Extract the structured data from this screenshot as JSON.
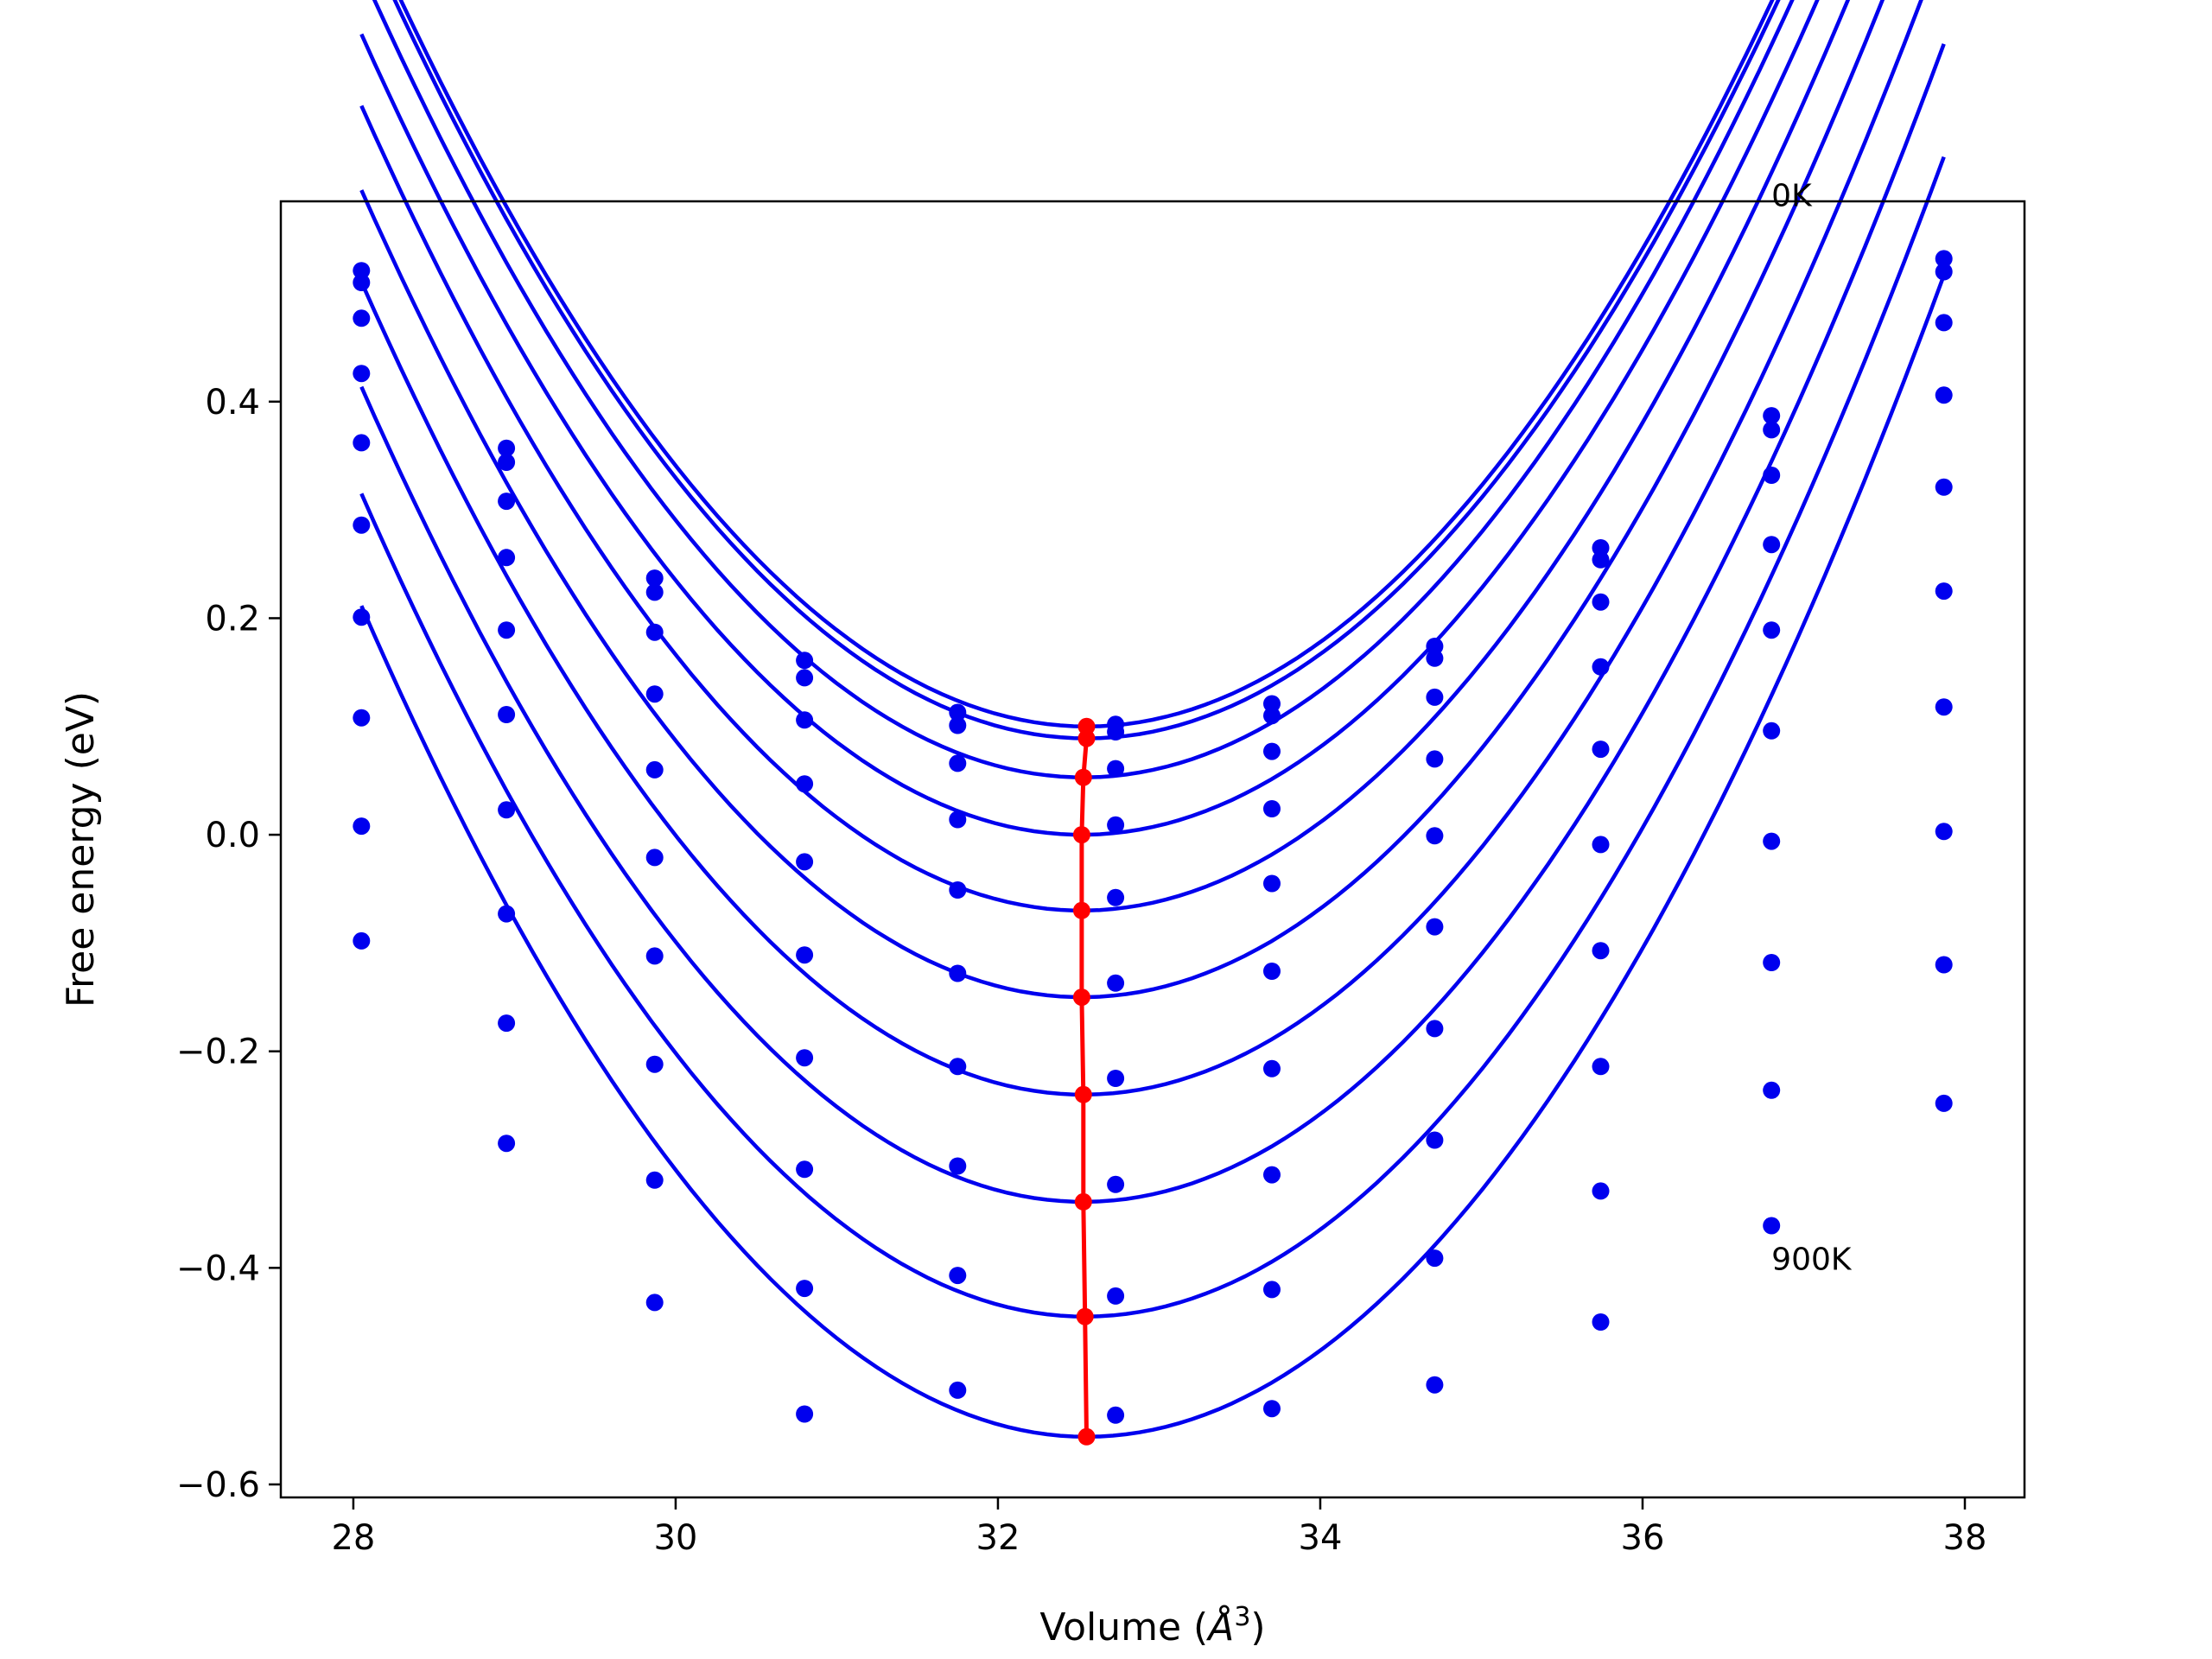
{
  "chart_data": {
    "type": "line",
    "xlabel": "Volume (",
    "xlabel_unit": "Å",
    "xlabel_exp": "3",
    "xlabel_close": ")",
    "ylabel": "Free energy (eV)",
    "xlim": [
      27.55,
      38.37
    ],
    "ylim": [
      -0.612,
      0.585
    ],
    "xticks": [
      28,
      30,
      32,
      34,
      36,
      38
    ],
    "xtick_labels": [
      "28",
      "30",
      "32",
      "34",
      "36",
      "38"
    ],
    "yticks": [
      -0.6,
      -0.4,
      -0.2,
      0.0,
      0.2,
      0.4
    ],
    "ytick_labels": [
      "−0.6",
      "−0.4",
      "−0.2",
      "0.0",
      "0.2",
      "0.4"
    ],
    "grid": false,
    "legend": "none",
    "colors": {
      "curves": "#0000ee",
      "minima": "#ff0000"
    },
    "annotations": [
      {
        "text": "0K",
        "x": 36.8,
        "y": 0.59
      },
      {
        "text": "900K",
        "x": 36.8,
        "y": -0.392
      }
    ],
    "volumes": [
      28.05,
      28.95,
      29.87,
      30.8,
      31.75,
      32.73,
      33.7,
      34.71,
      35.74,
      36.8,
      37.87
    ],
    "series": [
      {
        "points": [
          0.521,
          0.357,
          0.237,
          0.161,
          0.113,
          0.102,
          0.121,
          0.174,
          0.265,
          0.387,
          0.532
        ],
        "fit": {
          "a": 0.03705,
          "xmin": 32.55,
          "fmin": 0.1
        }
      },
      {
        "points": [
          0.51,
          0.344,
          0.224,
          0.145,
          0.101,
          0.095,
          0.11,
          0.163,
          0.254,
          0.374,
          0.52
        ],
        "fit": {
          "a": 0.037,
          "xmin": 32.55,
          "fmin": 0.089
        }
      },
      {
        "points": [
          0.477,
          0.308,
          0.187,
          0.106,
          0.066,
          0.061,
          0.077,
          0.127,
          0.215,
          0.332,
          0.473
        ],
        "fit": {
          "a": 0.0371,
          "xmin": 32.53,
          "fmin": 0.053
        }
      },
      {
        "points": [
          0.426,
          0.256,
          0.13,
          0.047,
          0.014,
          0.009,
          0.024,
          0.07,
          0.155,
          0.268,
          0.406
        ],
        "fit": {
          "a": 0.037,
          "xmin": 32.52,
          "fmin": 0.0
        }
      },
      {
        "points": [
          0.362,
          0.189,
          0.06,
          -0.025,
          -0.051,
          -0.058,
          -0.045,
          -0.001,
          0.079,
          0.189,
          0.321
        ],
        "fit": {
          "a": 0.0372,
          "xmin": 32.52,
          "fmin": -0.07
        }
      },
      {
        "points": [
          0.286,
          0.111,
          -0.021,
          -0.111,
          -0.128,
          -0.137,
          -0.126,
          -0.085,
          -0.009,
          0.096,
          0.225
        ],
        "fit": {
          "a": 0.0373,
          "xmin": 32.52,
          "fmin": -0.15
        }
      },
      {
        "points": [
          0.201,
          0.023,
          -0.112,
          -0.206,
          -0.214,
          -0.225,
          -0.216,
          -0.179,
          -0.107,
          -0.006,
          0.118
        ],
        "fit": {
          "a": 0.0374,
          "xmin": 32.53,
          "fmin": -0.24
        }
      },
      {
        "points": [
          0.108,
          -0.073,
          -0.212,
          -0.309,
          -0.306,
          -0.323,
          -0.314,
          -0.282,
          -0.214,
          -0.118,
          0.003
        ],
        "fit": {
          "a": 0.0375,
          "xmin": 32.53,
          "fmin": -0.339
        }
      },
      {
        "points": [
          0.008,
          -0.174,
          -0.319,
          -0.419,
          -0.407,
          -0.426,
          -0.42,
          -0.391,
          -0.329,
          -0.236,
          -0.12
        ],
        "fit": {
          "a": 0.0377,
          "xmin": 32.54,
          "fmin": -0.445
        }
      },
      {
        "points": [
          -0.098,
          -0.285,
          -0.432,
          -0.535,
          -0.513,
          -0.536,
          -0.53,
          -0.508,
          -0.45,
          -0.361,
          -0.248
        ],
        "fit": {
          "a": 0.0379,
          "xmin": 32.55,
          "fmin": -0.556
        }
      }
    ],
    "minima": [
      {
        "x": 32.55,
        "y": 0.1
      },
      {
        "x": 32.55,
        "y": 0.089
      },
      {
        "x": 32.53,
        "y": 0.053
      },
      {
        "x": 32.52,
        "y": 0.0
      },
      {
        "x": 32.52,
        "y": -0.07
      },
      {
        "x": 32.52,
        "y": -0.15
      },
      {
        "x": 32.53,
        "y": -0.24
      },
      {
        "x": 32.53,
        "y": -0.339
      },
      {
        "x": 32.54,
        "y": -0.445
      },
      {
        "x": 32.55,
        "y": -0.556
      }
    ]
  }
}
